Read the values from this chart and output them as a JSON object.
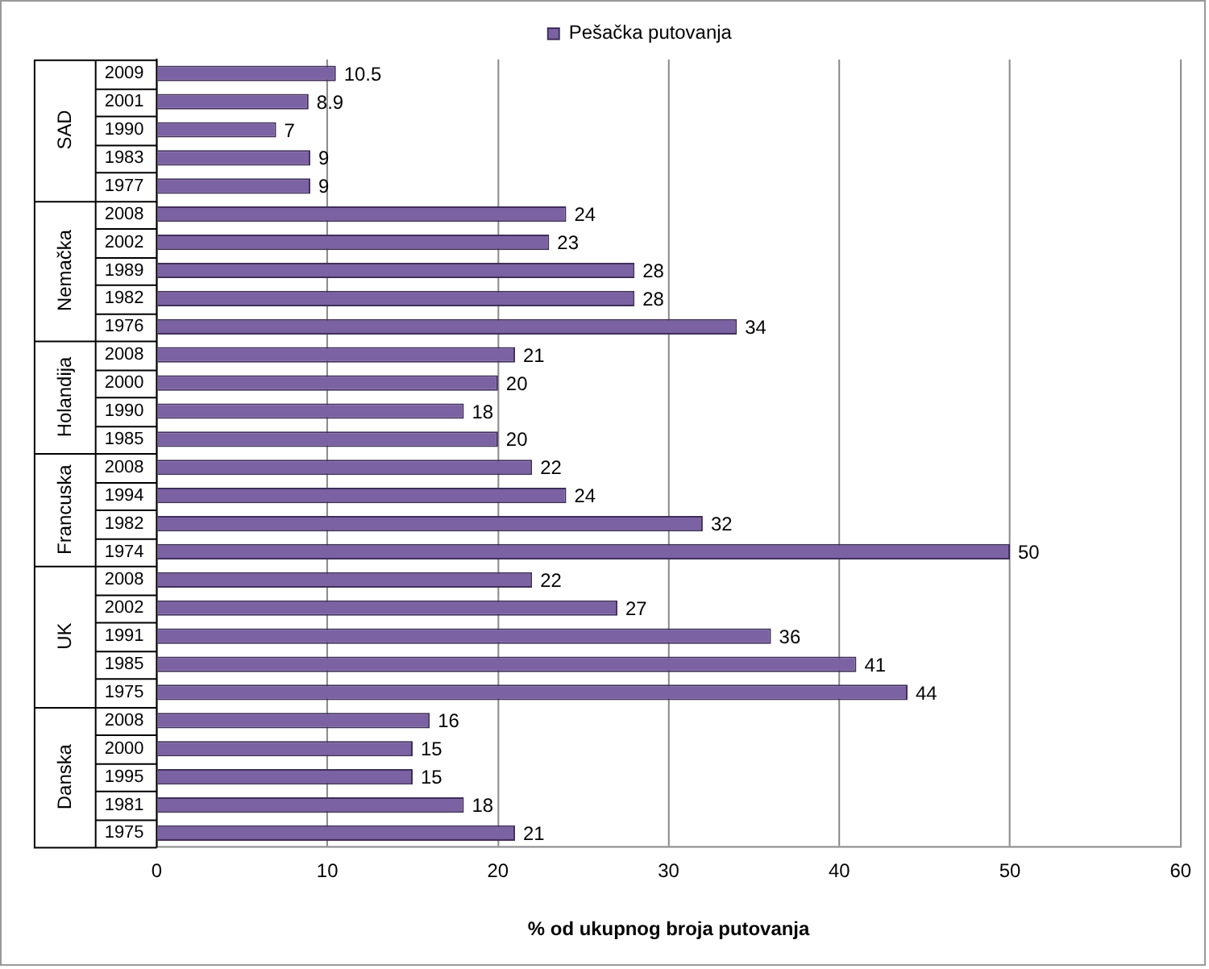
{
  "chart_data": {
    "type": "bar",
    "orientation": "horizontal",
    "xlabel": "% od ukupnog broja putovanja",
    "categories": [
      "2009",
      "2001",
      "1990",
      "1983",
      "1977",
      "2008",
      "2002",
      "1989",
      "1982",
      "1976",
      "2008",
      "2000",
      "1990",
      "1985",
      "2008",
      "1994",
      "1982",
      "1974",
      "2008",
      "2002",
      "1991",
      "1985",
      "1975",
      "2008",
      "2000",
      "1995",
      "1981",
      "1975"
    ],
    "series": [
      {
        "name": "Pešačka putovanja",
        "color": "#7b62a3",
        "values": [
          10.5,
          8.9,
          7,
          9,
          9,
          24,
          23,
          28,
          28,
          34,
          21,
          20,
          18,
          20,
          22,
          24,
          32,
          50,
          22,
          27,
          36,
          41,
          44,
          16,
          15,
          15,
          18,
          21
        ]
      }
    ],
    "annotations": [
      "SAD",
      "Nemačka",
      "Holandija",
      "Francuska",
      "UK",
      "Danska"
    ],
    "xlim": [
      0,
      60
    ],
    "xticks": [
      0,
      10,
      20,
      30,
      40,
      50,
      60
    ],
    "grid": "x",
    "legend": "top",
    "data_labels": true
  }
}
